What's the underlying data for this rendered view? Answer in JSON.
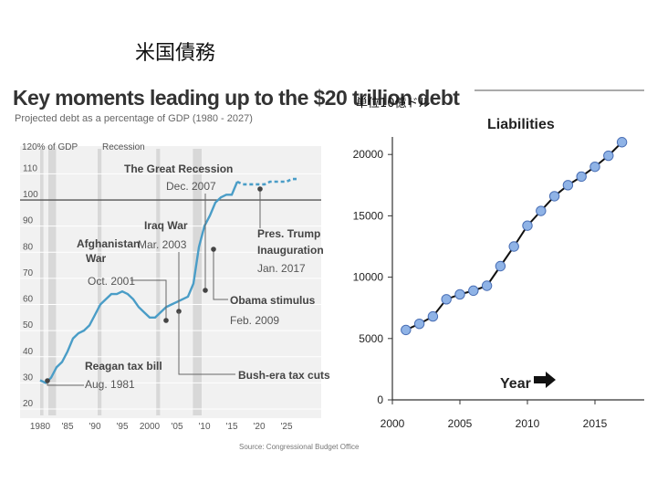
{
  "slide": {
    "title": "米国債務"
  },
  "left_chart": {
    "title": "Key moments leading up to the $20 trillion debt",
    "subtitle": "Projected debt as a percentage of GDP (1980 - 2027)",
    "source": "Source: Congressional Budget Office",
    "y_top_label": "120% of GDP",
    "recession_label": "Recession"
  },
  "right_chart": {
    "unit_label": "単位10億ドル",
    "title": "Liabilities",
    "year_label": "Year"
  },
  "chart_data": [
    {
      "type": "line",
      "title": "Key moments leading up to the $20 trillion debt",
      "subtitle": "Projected debt as a percentage of GDP (1980 - 2027)",
      "ylim": [
        20,
        120
      ],
      "xlim": [
        1980,
        2027
      ],
      "yticks": [
        20,
        30,
        40,
        50,
        60,
        70,
        80,
        90,
        100,
        110
      ],
      "ytick_labels": [
        "20",
        "30",
        "40",
        "50",
        "60",
        "70",
        "80",
        "90",
        "100",
        "110"
      ],
      "xticks": [
        1980,
        1985,
        1990,
        1995,
        2000,
        2005,
        2010,
        2015,
        2020,
        2025
      ],
      "xtick_labels": [
        "1980",
        "'85",
        "'90",
        "'95",
        "2000",
        "'05",
        "'10",
        "'15",
        "'20",
        "'25"
      ],
      "reference_line": 100,
      "recessions": [
        [
          1980,
          1980.6
        ],
        [
          1981.5,
          1982.9
        ],
        [
          1990.5,
          1991.2
        ],
        [
          2001.2,
          2001.9
        ],
        [
          2007.9,
          2009.5
        ]
      ],
      "series": [
        {
          "style": "solid",
          "x": [
            1980,
            1981,
            1982,
            1983,
            1984,
            1985,
            1986,
            1987,
            1988,
            1989,
            1990,
            1991,
            1992,
            1993,
            1994,
            1995,
            1996,
            1997,
            1998,
            1999,
            2000,
            2001,
            2002,
            2003,
            2004,
            2005,
            2006,
            2007,
            2008,
            2009,
            2010,
            2011,
            2012,
            2013,
            2014,
            2015,
            2016
          ],
          "y": [
            31,
            30,
            32,
            36,
            38,
            42,
            47,
            49,
            50,
            52,
            56,
            60,
            62,
            64,
            64,
            65,
            64,
            62,
            59,
            57,
            55,
            55,
            57,
            59,
            60,
            61,
            62,
            63,
            68,
            82,
            90,
            94,
            99,
            101,
            102,
            102,
            107
          ]
        },
        {
          "style": "dashed",
          "x": [
            2016,
            2017,
            2018,
            2019,
            2020,
            2021,
            2022,
            2023,
            2024,
            2025,
            2026,
            2027
          ],
          "y": [
            107,
            106,
            106,
            106,
            106,
            106,
            107,
            107,
            107,
            107,
            108,
            108
          ]
        }
      ],
      "annotations": [
        {
          "bold": "Reagan tax bill",
          "normal": "Aug. 1981",
          "x": 1981.6,
          "y": 32
        },
        {
          "bold": "Afghanistan War",
          "normal": "Oct. 2001",
          "x": 2001.8,
          "y": 56
        },
        {
          "bold": "Iraq War",
          "normal": "Mar. 2003",
          "x": 2003.2,
          "y": 59
        },
        {
          "bold": "Bush-era tax cuts",
          "normal": "",
          "x": 2003.2,
          "y": 59
        },
        {
          "bold": "The Great Recession",
          "normal": "Dec. 2007",
          "x": 2007.9,
          "y": 67
        },
        {
          "bold": "Obama stimulus",
          "normal": "Feb. 2009",
          "x": 2009.1,
          "y": 83
        },
        {
          "bold": "Pres. Trump Inauguration",
          "normal": "Jan. 2017",
          "x": 2017,
          "y": 106
        }
      ]
    },
    {
      "type": "line",
      "title": "Liabilities",
      "xlabel": "Year",
      "ylabel": "",
      "xlim": [
        2000,
        2018
      ],
      "ylim": [
        0,
        22000
      ],
      "xticks": [
        2000,
        2005,
        2010,
        2015
      ],
      "yticks": [
        0,
        5000,
        10000,
        15000,
        20000
      ],
      "x": [
        2001,
        2002,
        2003,
        2004,
        2005,
        2006,
        2007,
        2008,
        2009,
        2010,
        2011,
        2012,
        2013,
        2014,
        2015,
        2016,
        2017
      ],
      "y": [
        5700,
        6200,
        6800,
        8200,
        8600,
        8900,
        9300,
        10900,
        12500,
        14200,
        15400,
        16600,
        17500,
        18200,
        19000,
        19900,
        21000
      ]
    }
  ]
}
